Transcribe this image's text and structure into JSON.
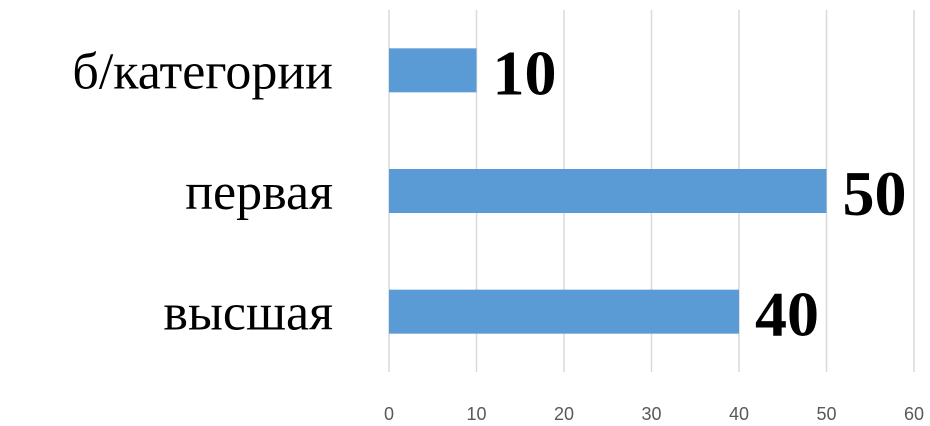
{
  "chart_data": {
    "type": "bar",
    "orientation": "horizontal",
    "title": "",
    "xlabel": "",
    "ylabel": "",
    "categories": [
      "б/категории",
      "первая",
      "высшая"
    ],
    "values": [
      10,
      50,
      40
    ],
    "xlim": [
      0,
      60
    ],
    "x_ticks": [
      0,
      10,
      20,
      30,
      40,
      50,
      60
    ],
    "x_tick_labels": [
      "0",
      "10",
      "20",
      "30",
      "40",
      "50",
      "60"
    ],
    "data_labels": [
      "10",
      "50",
      "40"
    ],
    "grid": true,
    "legend": "none",
    "bar_color": "#5b9bd5"
  }
}
